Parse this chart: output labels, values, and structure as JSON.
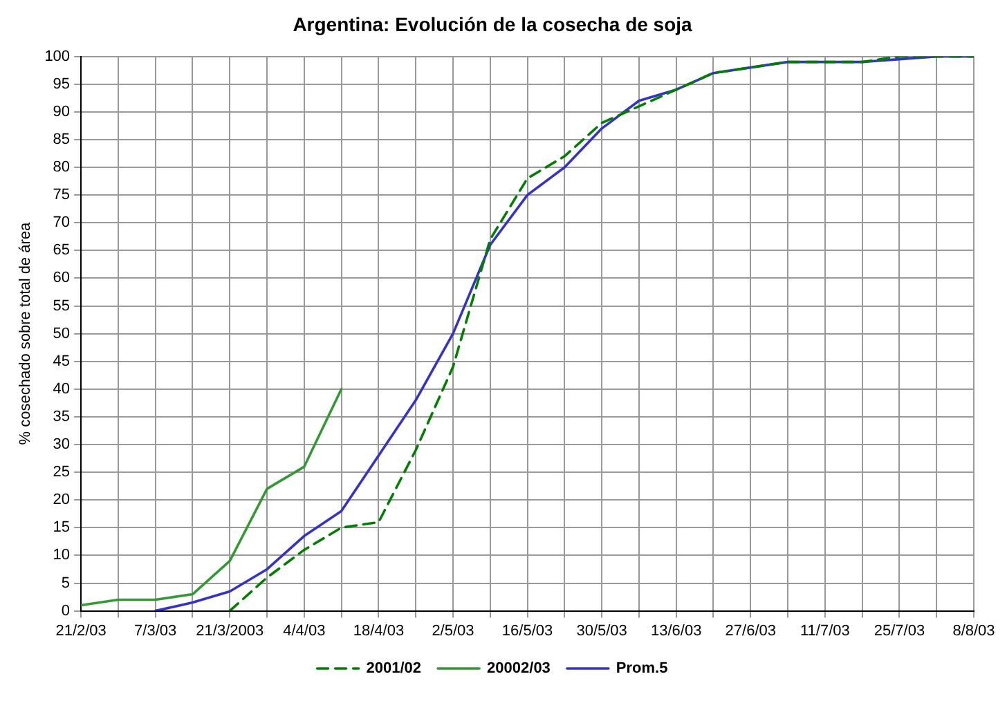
{
  "chart_data": {
    "type": "line",
    "title": "Argentina: Evolución de la cosecha de soja",
    "ylabel": "% cosechado sobre total de área",
    "x": [
      "2003-02-21",
      "2003-02-28",
      "2003-03-07",
      "2003-03-14",
      "2003-03-21",
      "2003-03-28",
      "2003-04-04",
      "2003-04-11",
      "2003-04-18",
      "2003-04-25",
      "2003-05-02",
      "2003-05-09",
      "2003-05-16",
      "2003-05-23",
      "2003-05-30",
      "2003-06-06",
      "2003-06-13",
      "2003-06-20",
      "2003-06-27",
      "2003-07-04",
      "2003-07-11",
      "2003-07-18",
      "2003-07-25",
      "2003-08-01",
      "2003-08-08"
    ],
    "series": [
      {
        "name": "2001/02",
        "color": "#008000",
        "line_style": "dashed",
        "values": [
          null,
          null,
          null,
          null,
          0,
          6,
          11,
          15,
          16,
          29,
          44,
          67,
          78,
          82,
          88,
          91,
          94,
          97,
          98,
          99,
          99,
          99,
          100,
          100,
          100
        ]
      },
      {
        "name": "20002/03",
        "color": "#339933",
        "line_style": "solid",
        "values": [
          1,
          2,
          2,
          3,
          9,
          22,
          26,
          40,
          null,
          null,
          null,
          null,
          null,
          null,
          null,
          null,
          null,
          null,
          null,
          null,
          null,
          null,
          null,
          null,
          null
        ]
      },
      {
        "name": "Prom.5",
        "color": "#3333cc",
        "line_style": "solid",
        "values": [
          null,
          null,
          0,
          1.5,
          3.5,
          7.5,
          13.5,
          18,
          28,
          38,
          50,
          66,
          75,
          80,
          87,
          92,
          94,
          97,
          98,
          99,
          99,
          99,
          99.5,
          100,
          100
        ]
      }
    ],
    "xlim": [
      "2003-02-21",
      "2003-08-08"
    ],
    "xticks": [
      {
        "value": "2003-02-21",
        "label": "21/2/03"
      },
      {
        "value": "2003-02-28",
        "label": null
      },
      {
        "value": "2003-03-07",
        "label": "7/3/03"
      },
      {
        "value": "2003-03-14",
        "label": null
      },
      {
        "value": "2003-03-21",
        "label": "21/3/2003"
      },
      {
        "value": "2003-03-28",
        "label": null
      },
      {
        "value": "2003-04-04",
        "label": "4/4/03"
      },
      {
        "value": "2003-04-11",
        "label": null
      },
      {
        "value": "2003-04-18",
        "label": "18/4/03"
      },
      {
        "value": "2003-04-25",
        "label": null
      },
      {
        "value": "2003-05-02",
        "label": "2/5/03"
      },
      {
        "value": "2003-05-09",
        "label": null
      },
      {
        "value": "2003-05-16",
        "label": "16/5/03"
      },
      {
        "value": "2003-05-23",
        "label": null
      },
      {
        "value": "2003-05-30",
        "label": "30/5/03"
      },
      {
        "value": "2003-06-06",
        "label": null
      },
      {
        "value": "2003-06-13",
        "label": "13/6/03"
      },
      {
        "value": "2003-06-20",
        "label": null
      },
      {
        "value": "2003-06-27",
        "label": "27/6/03"
      },
      {
        "value": "2003-07-04",
        "label": null
      },
      {
        "value": "2003-07-11",
        "label": "11/7/03"
      },
      {
        "value": "2003-07-18",
        "label": null
      },
      {
        "value": "2003-07-25",
        "label": "25/7/03"
      },
      {
        "value": "2003-08-01",
        "label": null
      },
      {
        "value": "2003-08-08",
        "label": "8/8/03"
      }
    ],
    "ylim": [
      0,
      100
    ],
    "yticks": [
      0,
      5,
      10,
      15,
      20,
      25,
      30,
      35,
      40,
      45,
      50,
      55,
      60,
      65,
      70,
      75,
      80,
      85,
      90,
      95,
      100
    ],
    "grid": true,
    "legend": "bottom",
    "marker": "none"
  }
}
